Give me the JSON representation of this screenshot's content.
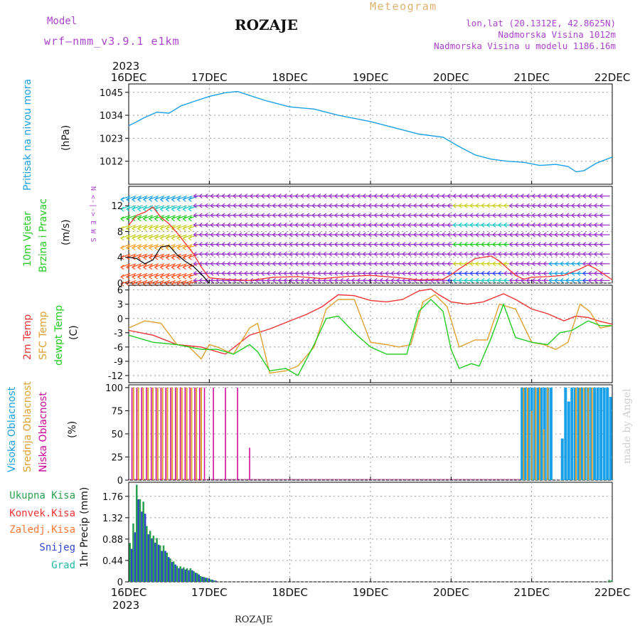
{
  "header": {
    "model_label": "Model",
    "model_name": "wrf–nmm_v3.9.1  e1km",
    "title": "ROZAJE",
    "meteogram_label": "Meteogram",
    "lonlat": "lon,lat (20.1312E, 42.8625N)",
    "altitude": "Nadmorska Visina 1012m",
    "model_altitude": "Nadmorska Visina u modelu 1186.16m",
    "year": "2023",
    "footer_title": "ROZAJE",
    "credit": "made by Angel"
  },
  "colors": {
    "pressure": "#1aa0e6",
    "wind_speed": "#ff3333",
    "gust": "#000000",
    "temp_2m": "#ee3333",
    "temp_sfc": "#e0a030",
    "dewpoint": "#22cc22",
    "cloud_high": "#1aa0e6",
    "cloud_mid": "#e0a030",
    "cloud_low": "#cc0099",
    "precip_total": "#2aa050",
    "precip_snow": "#3344cc"
  },
  "chart_data": [
    {
      "type": "line",
      "name": "pressure",
      "ylabel_left": "Pritisak na nivou mora",
      "ylabel_unit": "(hPa)",
      "ylim": [
        1001,
        1049
      ],
      "yticks": [
        1012,
        1023,
        1034,
        1045
      ],
      "x_ticks": [
        "16DEC",
        "17DEC",
        "18DEC",
        "19DEC",
        "20DEC",
        "21DEC",
        "22DEC"
      ],
      "x": [
        0,
        0.08,
        0.2,
        0.35,
        0.5,
        0.65,
        0.8,
        1.0,
        1.2,
        1.35,
        1.5,
        1.7,
        2.0,
        2.3,
        2.6,
        3.0,
        3.3,
        3.6,
        3.9,
        4.1,
        4.3,
        4.5,
        4.7,
        4.9,
        5.1,
        5.3,
        5.45,
        5.55,
        5.65,
        5.8,
        6.0
      ],
      "values": [
        1029,
        1030.5,
        1033,
        1035.5,
        1035,
        1038.5,
        1040.5,
        1043,
        1044.8,
        1045.4,
        1043.5,
        1041,
        1038,
        1037,
        1034,
        1031,
        1028,
        1025,
        1023.5,
        1019,
        1015,
        1013,
        1012,
        1011.5,
        1010,
        1010.5,
        1009.5,
        1007,
        1007.5,
        1011,
        1014
      ]
    },
    {
      "type": "line",
      "name": "wind",
      "ylabel_left": "10m Vjetar",
      "ylabel_left2": "Brzina i Pravac",
      "ylabel_unit": "(m/s)",
      "compass": "N <-|-> E W S",
      "ylim": [
        0,
        15
      ],
      "yticks": [
        0,
        4,
        8,
        12
      ],
      "x": [
        0,
        0.1,
        0.2,
        0.3,
        0.4,
        0.5,
        0.6,
        0.7,
        0.8,
        0.9,
        1.0,
        1.2,
        1.5,
        1.8,
        2.1,
        2.4,
        2.7,
        3.0,
        3.3,
        3.6,
        3.9,
        4.0,
        4.1,
        4.3,
        4.5,
        4.6,
        4.8,
        4.9,
        5.0,
        5.2,
        5.4,
        5.6,
        5.7,
        5.8,
        6.0
      ],
      "values": [
        9,
        10.5,
        11,
        11.8,
        10.2,
        9.2,
        7.8,
        6.2,
        4.6,
        2.5,
        0.8,
        0.6,
        0.4,
        0.9,
        1.0,
        0.7,
        1.0,
        1.2,
        0.9,
        0.5,
        0.6,
        1.3,
        2.2,
        3.8,
        4.2,
        3.4,
        1.2,
        0.6,
        0.9,
        1.0,
        1.2,
        2.2,
        2.8,
        2.2,
        0.5
      ],
      "gust_x": [
        0,
        0.1,
        0.2,
        0.3,
        0.4,
        0.5,
        0.6,
        0.7,
        0.8,
        0.9,
        1.0
      ],
      "gust_values": [
        4,
        3.8,
        3,
        3.6,
        5.6,
        5.8,
        4.4,
        3.4,
        2.6,
        1.4,
        0
      ],
      "barb_rows": [
        0.4,
        1.5,
        3,
        4.5,
        6,
        7.5,
        9,
        10.5,
        12,
        13.5
      ],
      "barb_colors_by_speed": [
        "#3344ff",
        "#1aa0e6",
        "#22c9c9",
        "#22cc22",
        "#c8d020",
        "#ffa020",
        "#ff5020"
      ],
      "barb_default": "#9933cc"
    },
    {
      "type": "line",
      "name": "temperature",
      "ylabel_left": "2m Temp",
      "ylabel_left2": "SFC Temp",
      "ylabel_left3": "dewpt Temp",
      "ylabel_unit": "(C)",
      "ylim": [
        -13.5,
        7
      ],
      "yticks": [
        -12,
        -9,
        -6,
        -3,
        0,
        3,
        6
      ],
      "series": [
        {
          "name": "2m Temp",
          "x": [
            0,
            0.3,
            0.6,
            0.9,
            1.2,
            1.35,
            1.5,
            1.75,
            2.0,
            2.2,
            2.4,
            2.6,
            2.8,
            3.0,
            3.2,
            3.4,
            3.6,
            3.75,
            3.85,
            4.0,
            4.2,
            4.4,
            4.65,
            4.8,
            5.0,
            5.2,
            5.4,
            5.55,
            5.7,
            5.85,
            6.0
          ],
          "values": [
            -2.5,
            -3.5,
            -5.5,
            -6,
            -7.5,
            -5.5,
            -3.5,
            -2.2,
            -0.5,
            0.8,
            2.5,
            5,
            4.8,
            3.8,
            3.5,
            4,
            5.8,
            6.2,
            5,
            3.5,
            3,
            3.5,
            5.2,
            4,
            2,
            1,
            -0.5,
            0.5,
            0.2,
            -0.6,
            -1.2
          ]
        },
        {
          "name": "SFC Temp",
          "x": [
            0,
            0.2,
            0.4,
            0.6,
            0.75,
            0.9,
            1.0,
            1.1,
            1.3,
            1.5,
            1.6,
            1.75,
            1.95,
            2.1,
            2.3,
            2.45,
            2.6,
            2.8,
            3.0,
            3.2,
            3.35,
            3.5,
            3.65,
            3.8,
            3.95,
            4.1,
            4.3,
            4.45,
            4.6,
            4.8,
            5.0,
            5.15,
            5.3,
            5.45,
            5.6,
            5.72,
            5.85,
            6.0
          ],
          "values": [
            -2,
            -0.5,
            -1,
            -5.5,
            -6,
            -8.5,
            -5.5,
            -6,
            -7.5,
            -2,
            -1,
            -11.5,
            -11,
            -10,
            -6,
            2,
            4,
            4,
            -5,
            -5.5,
            -6,
            -5.5,
            3.5,
            5,
            2.5,
            -6,
            -4.5,
            -4.5,
            3,
            2,
            -5,
            -5.5,
            -6.5,
            -5,
            3,
            1.5,
            -2,
            -1.5
          ]
        },
        {
          "name": "dewpt Temp",
          "x": [
            0,
            0.3,
            0.6,
            0.9,
            1.1,
            1.3,
            1.5,
            1.6,
            1.75,
            1.95,
            2.1,
            2.3,
            2.45,
            2.6,
            2.8,
            3.0,
            3.2,
            3.35,
            3.45,
            3.6,
            3.75,
            3.9,
            4.0,
            4.1,
            4.25,
            4.35,
            4.5,
            4.65,
            4.8,
            5.0,
            5.2,
            5.35,
            5.5,
            5.7,
            5.85,
            6.0
          ],
          "values": [
            -3.5,
            -5,
            -5.5,
            -6.5,
            -6.5,
            -7.5,
            -5.5,
            -7,
            -11,
            -10.5,
            -12,
            -5.5,
            0,
            0.5,
            -3,
            -6,
            -7.5,
            -7.5,
            -7.5,
            1.5,
            4,
            1.5,
            -6.5,
            -10.5,
            -9.5,
            -10,
            -4,
            3,
            -4,
            -5,
            -5.5,
            -3,
            -2.5,
            -0.5,
            -1.5,
            -1.5
          ]
        }
      ]
    },
    {
      "type": "bar",
      "name": "cloud cover",
      "ylabel_left": "Visoka Oblacnost",
      "ylabel_left2": "Srednja Oblacnost",
      "ylabel_left3": "Niska Oblacnost",
      "ylabel_unit": "(%)",
      "ylim": [
        0,
        103
      ],
      "yticks": [
        0,
        25,
        50,
        75,
        100
      ],
      "low_cloud_x": [
        0.04,
        0.1,
        0.16,
        0.22,
        0.28,
        0.34,
        0.4,
        0.46,
        0.52,
        0.58,
        0.64,
        0.7,
        0.76,
        0.82,
        0.88,
        0.94,
        1.05,
        1.2,
        1.35,
        1.5
      ],
      "low_cloud_values": [
        100,
        100,
        100,
        100,
        100,
        100,
        100,
        100,
        100,
        100,
        100,
        100,
        100,
        100,
        100,
        100,
        100,
        100,
        100,
        35
      ],
      "mid_cloud_x": [
        0.06,
        0.12,
        0.18,
        0.24,
        0.3,
        0.36,
        0.42,
        0.48,
        0.54,
        0.6,
        0.66,
        0.72,
        0.78,
        0.84,
        0.9,
        4.9,
        4.95,
        5.0,
        5.05,
        5.1,
        5.15,
        5.2,
        5.55,
        5.6,
        5.65,
        5.7,
        5.75
      ],
      "mid_cloud_values": [
        100,
        100,
        100,
        100,
        100,
        100,
        100,
        100,
        100,
        100,
        100,
        100,
        100,
        100,
        100,
        100,
        100,
        75,
        100,
        100,
        55,
        100,
        100,
        100,
        100,
        100,
        100
      ],
      "high_cloud_x": [
        4.88,
        4.92,
        4.96,
        5.0,
        5.04,
        5.08,
        5.12,
        5.16,
        5.2,
        5.24,
        5.38,
        5.42,
        5.46,
        5.5,
        5.54,
        5.58,
        5.62,
        5.66,
        5.7,
        5.74,
        5.78,
        5.82,
        5.86,
        5.9,
        5.94,
        5.98
      ],
      "high_cloud_values": [
        100,
        100,
        100,
        100,
        100,
        100,
        100,
        100,
        100,
        100,
        45,
        100,
        85,
        100,
        100,
        100,
        100,
        100,
        100,
        100,
        100,
        100,
        100,
        100,
        100,
        90
      ]
    },
    {
      "type": "bar",
      "name": "precipitation",
      "legend": [
        "Ukupna Kisa",
        "Konvek.Kisa",
        "Zaledj.Kisa",
        "Snijeg",
        "Grad"
      ],
      "ylabel_unit": "1hr Precip (mm)",
      "ylim": [
        0,
        2.05
      ],
      "yticks": [
        0,
        0.44,
        0.88,
        1.32,
        1.76
      ],
      "x_step_days": 0.0417,
      "x_start": 0.0,
      "values": [
        0.8,
        1.2,
        2.0,
        1.7,
        1.65,
        1.15,
        1.05,
        0.95,
        0.9,
        0.75,
        0.75,
        0.6,
        0.48,
        0.42,
        0.33,
        0.32,
        0.3,
        0.28,
        0.28,
        0.22,
        0.18,
        0.12,
        0.1,
        0.08,
        0.05,
        0.03
      ],
      "late_x": [
        5.95,
        5.98
      ],
      "late_values": [
        0.04,
        0.03
      ]
    }
  ]
}
